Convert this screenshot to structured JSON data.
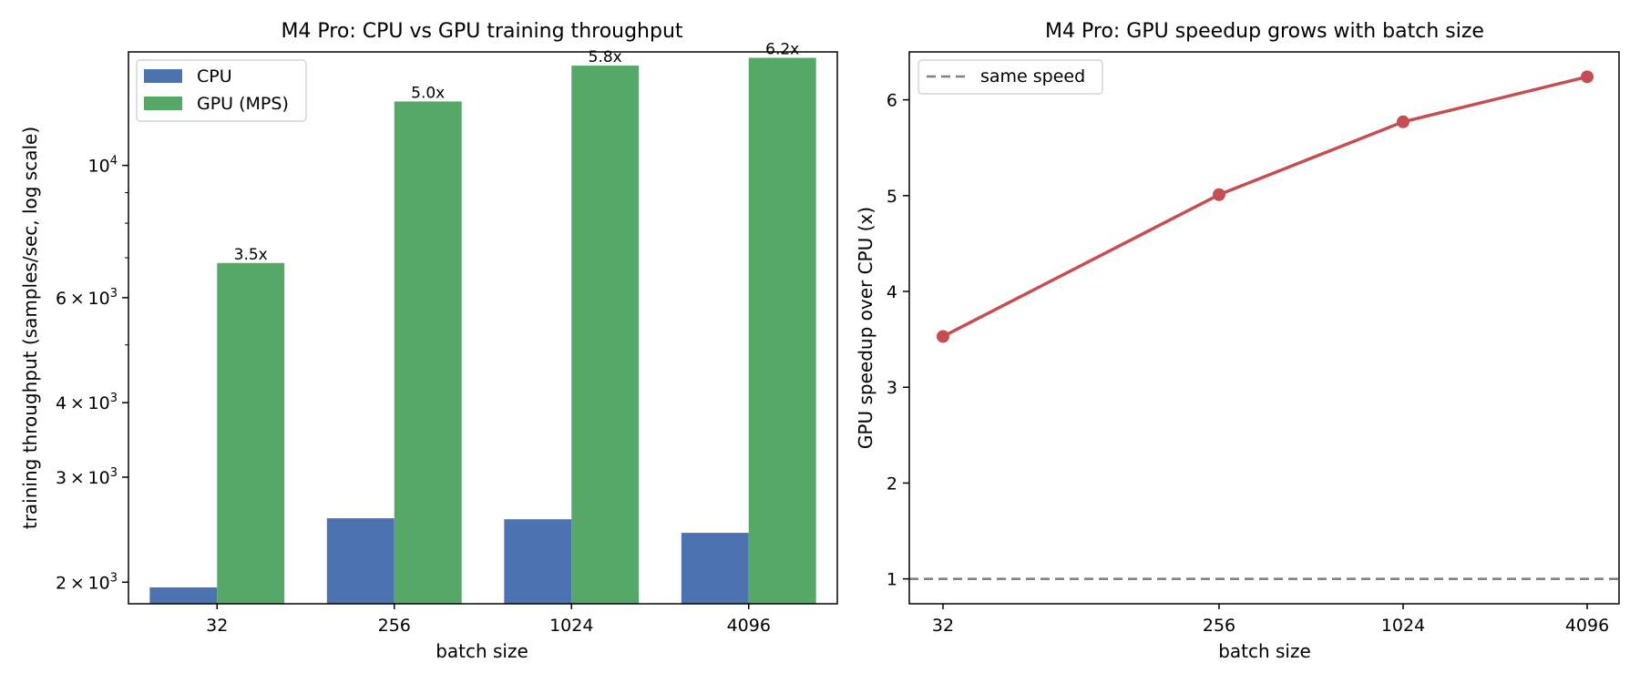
{
  "chart_data": [
    {
      "type": "bar",
      "title": "M4 Pro: CPU vs GPU training throughput",
      "xlabel": "batch size",
      "ylabel": "training throughput (samples/sec, log scale)",
      "yscale": "log",
      "ylim": [
        1840,
        15500
      ],
      "yticks": [
        {
          "value": 2000,
          "base": "2",
          "exp": "3"
        },
        {
          "value": 3000,
          "base": "3",
          "exp": "3"
        },
        {
          "value": 4000,
          "base": "4",
          "exp": "3"
        },
        {
          "value": 6000,
          "base": "6",
          "exp": "3"
        },
        {
          "value": 10000,
          "base": "10",
          "exp": "4"
        }
      ],
      "categories": [
        "32",
        "256",
        "1024",
        "4096"
      ],
      "series": [
        {
          "name": "CPU",
          "color": "#4c72b0",
          "values": [
            1960,
            2560,
            2550,
            2420
          ]
        },
        {
          "name": "GPU (MPS)",
          "color": "#55a868",
          "values": [
            6860,
            12800,
            14700,
            15150
          ]
        }
      ],
      "bar_labels": [
        "3.5x",
        "5.0x",
        "5.8x",
        "6.2x"
      ],
      "legend": "upper-left",
      "grid": false
    },
    {
      "type": "line",
      "title": "M4 Pro: GPU speedup grows with batch size",
      "xlabel": "batch size",
      "ylabel": "GPU speedup over CPU (x)",
      "xscale": "log2",
      "x": [
        32,
        256,
        1024,
        4096
      ],
      "xticklabels": [
        "32",
        "256",
        "1024",
        "4096"
      ],
      "y": [
        3.53,
        5.01,
        5.77,
        6.24
      ],
      "ylim": [
        0.74,
        6.5
      ],
      "yticks": [
        "1",
        "2",
        "3",
        "4",
        "5",
        "6"
      ],
      "series_color": "#c44e52",
      "reference_line": {
        "y": 1,
        "label": "same speed",
        "color": "#808080",
        "style": "dashed"
      },
      "legend": "upper-left",
      "grid": false
    }
  ]
}
